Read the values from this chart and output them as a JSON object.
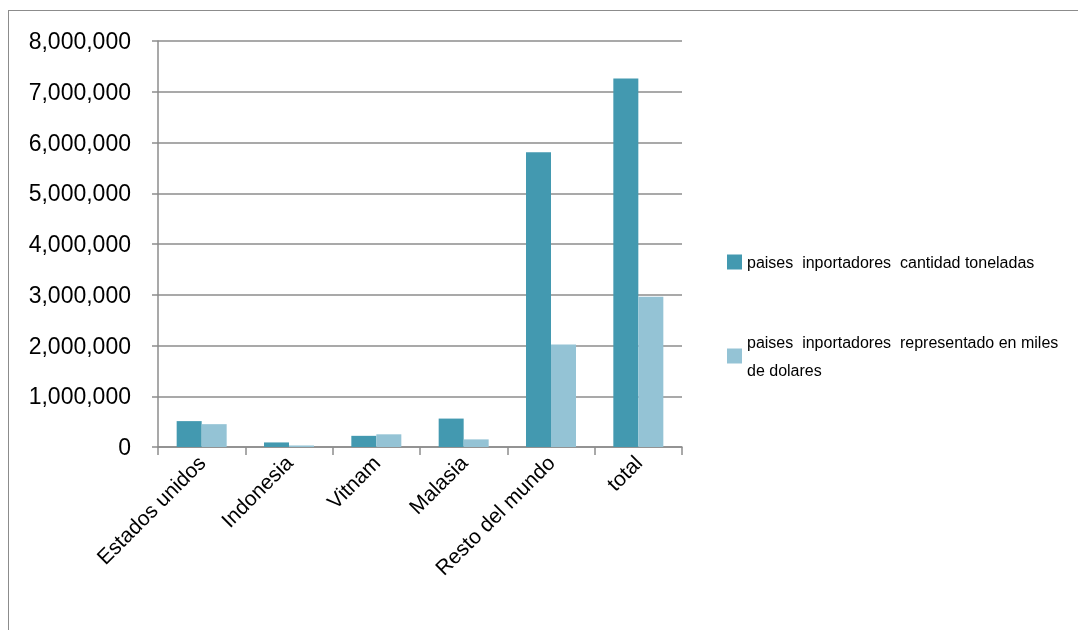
{
  "chart_data": {
    "type": "bar",
    "categories": [
      "Estados unidos",
      "Indonesia",
      "Vitnam",
      "Malasia",
      "Resto del mundo",
      "total"
    ],
    "series": [
      {
        "name": "paises  inportadores  cantidad toneladas",
        "color": "#4399b0",
        "values": [
          510000,
          90000,
          220000,
          560000,
          5810000,
          7260000
        ]
      },
      {
        "name": "paises  inportadores  representado en miles de dolares",
        "color": "#94c3d5",
        "values": [
          450000,
          30000,
          250000,
          150000,
          2020000,
          2960000
        ]
      }
    ],
    "ylim": [
      0,
      8000000
    ],
    "yticks": [
      {
        "value": 0,
        "label": "0"
      },
      {
        "value": 1000000,
        "label": "1,000,000"
      },
      {
        "value": 2000000,
        "label": "2,000,000"
      },
      {
        "value": 3000000,
        "label": "3,000,000"
      },
      {
        "value": 4000000,
        "label": "4,000,000"
      },
      {
        "value": 5000000,
        "label": "5,000,000"
      },
      {
        "value": 6000000,
        "label": "6,000,000"
      },
      {
        "value": 7000000,
        "label": "7,000,000"
      },
      {
        "value": 8000000,
        "label": "8,000,000"
      }
    ],
    "grid": "y",
    "legend": "right"
  }
}
